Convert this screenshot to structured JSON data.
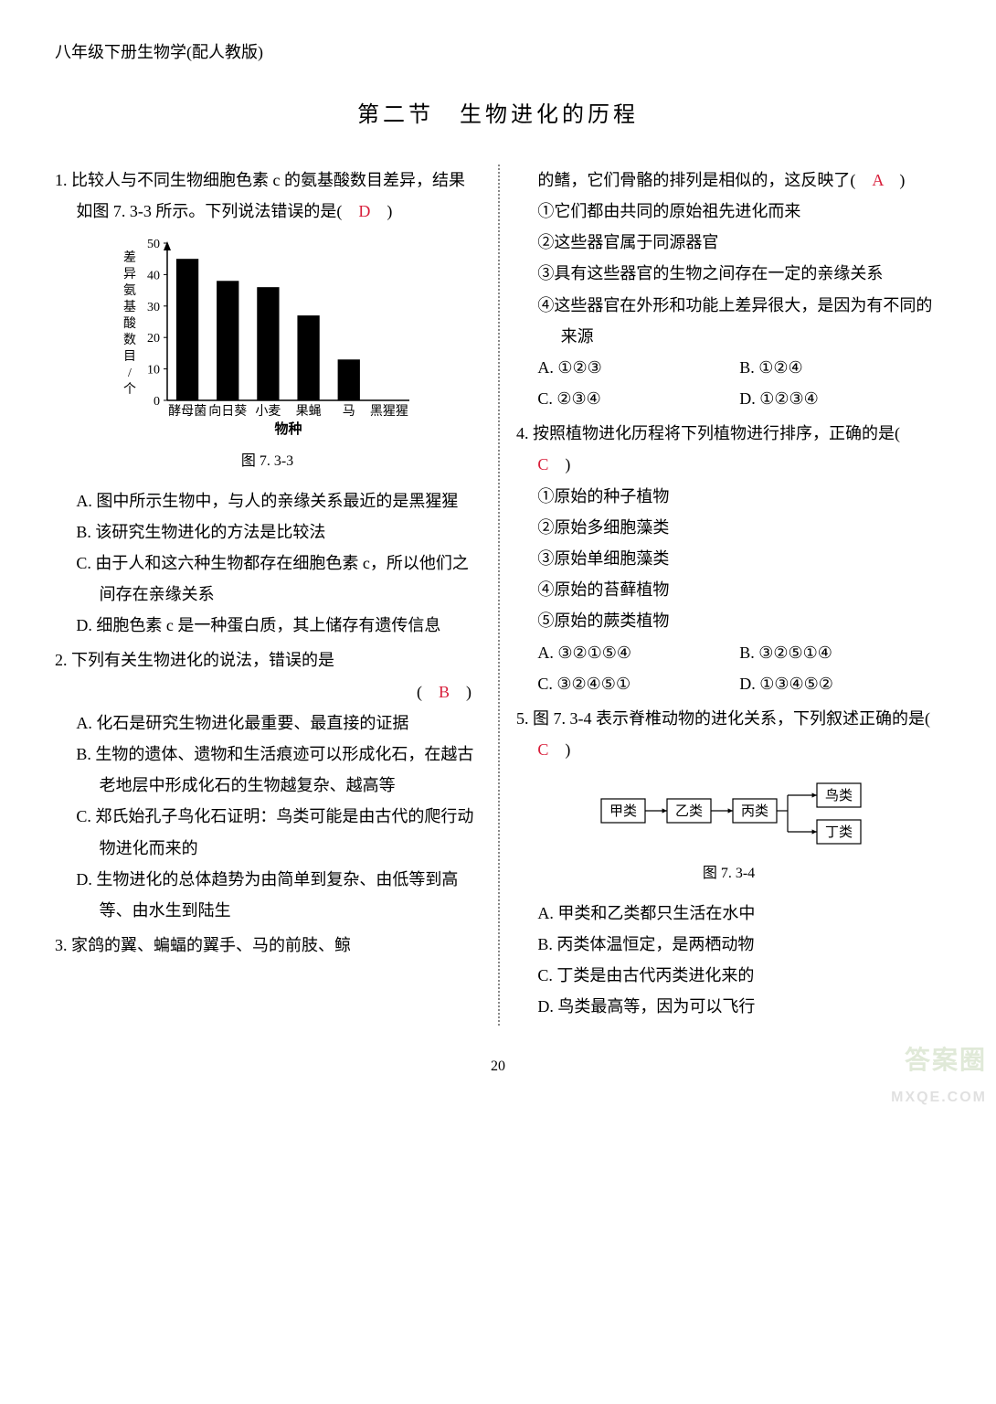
{
  "header": "八年级下册生物学(配人教版)",
  "section_title": "第二节　生物进化的历程",
  "page_number": "20",
  "watermark": {
    "line1": "答案圈",
    "line2": "MXQE.COM"
  },
  "q1": {
    "stem": "1. 比较人与不同生物细胞色素 c 的氨基酸数目差异，结果如图 7. 3-3 所示。下列说法错误的是(　",
    "stem_end": "　)",
    "answer": "D",
    "chart": {
      "type": "bar",
      "ylabel_chars": [
        "差",
        "异",
        "氨",
        "基",
        "酸",
        "数",
        "目",
        "/",
        "个"
      ],
      "categories": [
        "酵母菌",
        "向日葵",
        "小麦",
        "果蝇",
        "马",
        "黑猩猩"
      ],
      "values": [
        45,
        38,
        36,
        27,
        13,
        0
      ],
      "ylim": [
        0,
        50
      ],
      "ytick_step": 10,
      "bar_color": "#000000",
      "axis_color": "#000000",
      "label_fontsize": 14,
      "tick_fontsize": 14,
      "xlabel": "物种",
      "caption": "图 7. 3-3"
    },
    "optA": "A. 图中所示生物中，与人的亲缘关系最近的是黑猩猩",
    "optB": "B. 该研究生物进化的方法是比较法",
    "optC": "C. 由于人和这六种生物都存在细胞色素 c，所以他们之间存在亲缘关系",
    "optD": "D. 细胞色素 c 是一种蛋白质，其上储存有遗传信息"
  },
  "q2": {
    "stem": "2. 下列有关生物进化的说法，错误的是",
    "paren_open": "(　",
    "paren_close": "　)",
    "answer": "B",
    "optA": "A. 化石是研究生物进化最重要、最直接的证据",
    "optB": "B. 生物的遗体、遗物和生活痕迹可以形成化石，在越古老地层中形成化石的生物越复杂、越高等",
    "optC": "C. 郑氏始孔子鸟化石证明：鸟类可能是由古代的爬行动物进化而来的",
    "optD": "D. 生物进化的总体趋势为由简单到复杂、由低等到高等、由水生到陆生"
  },
  "q3": {
    "stem_left": "3. 家鸽的翼、蝙蝠的翼手、马的前肢、鲸",
    "stem_right": "的鳍，它们骨骼的排列是相似的，这反映了(　",
    "stem_end": "　)",
    "answer": "A",
    "s1": "①它们都由共同的原始祖先进化而来",
    "s2": "②这些器官属于同源器官",
    "s3": "③具有这些器官的生物之间存在一定的亲缘关系",
    "s4": "④这些器官在外形和功能上差异很大，是因为有不同的来源",
    "optA": "A. ①②③",
    "optB": "B. ①②④",
    "optC": "C. ②③④",
    "optD": "D. ①②③④"
  },
  "q4": {
    "stem": "4. 按照植物进化历程将下列植物进行排序，正确的是(　",
    "stem_end": "　)",
    "answer": "C",
    "s1": "①原始的种子植物",
    "s2": "②原始多细胞藻类",
    "s3": "③原始单细胞藻类",
    "s4": "④原始的苔藓植物",
    "s5": "⑤原始的蕨类植物",
    "optA": "A. ③②①⑤④",
    "optB": "B. ③②⑤①④",
    "optC": "C. ③②④⑤①",
    "optD": "D. ①③④⑤②"
  },
  "q5": {
    "stem": "5. 图 7. 3-4 表示脊椎动物的进化关系，下列叙述正确的是(　",
    "stem_end": "　)",
    "answer": "C",
    "flow": {
      "n1": "甲类",
      "n2": "乙类",
      "n3": "丙类",
      "n4": "鸟类",
      "n5": "丁类",
      "caption": "图 7. 3-4",
      "box_stroke": "#000000",
      "arrow_stroke": "#000000",
      "fontsize": 15
    },
    "optA": "A. 甲类和乙类都只生活在水中",
    "optB": "B. 丙类体温恒定，是两栖动物",
    "optC": "C. 丁类是由古代丙类进化来的",
    "optD": "D. 鸟类最高等，因为可以飞行"
  }
}
